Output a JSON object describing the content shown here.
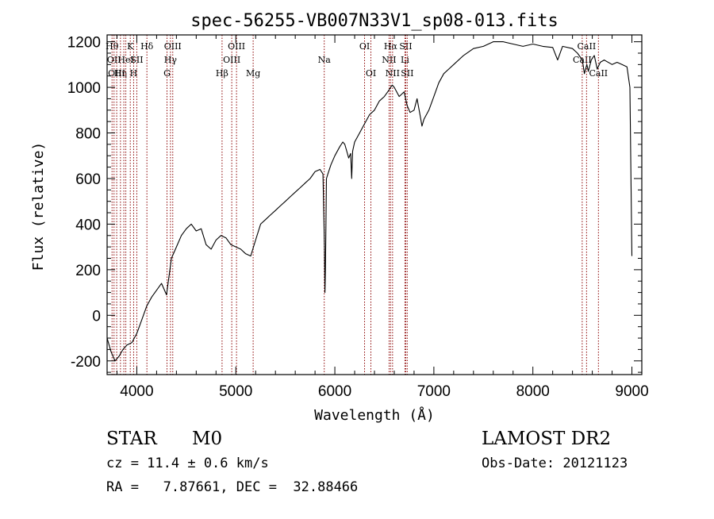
{
  "title": "spec-56255-VB007N33V1_sp08-013.fits",
  "chart_data": {
    "type": "line",
    "title": "spec-56255-VB007N33V1_sp08-013.fits",
    "xlabel": "Wavelength (Å)",
    "ylabel": "Flux (relative)",
    "xlim": [
      3700,
      9100
    ],
    "ylim": [
      -260,
      1230
    ],
    "xticks": [
      4000,
      5000,
      6000,
      7000,
      8000,
      9000
    ],
    "yticks": [
      -200,
      0,
      200,
      400,
      600,
      800,
      1000,
      1200
    ],
    "grid": false,
    "line_color": "#000000",
    "marker_color": "#8b0000",
    "series": [
      {
        "x": [
          3700,
          3740,
          3780,
          3820,
          3860,
          3900,
          3950,
          4000,
          4050,
          4100,
          4150,
          4200,
          4250,
          4300,
          4350,
          4400,
          4450,
          4500,
          4550,
          4600,
          4650,
          4700,
          4750,
          4800,
          4850,
          4900,
          4950,
          5000,
          5050,
          5100,
          5150,
          5200,
          5250,
          5300,
          5350,
          5400,
          5450,
          5500,
          5550,
          5600,
          5650,
          5700,
          5750,
          5800,
          5850,
          5880,
          5895,
          5900,
          5905,
          5915,
          5930,
          5960,
          6000,
          6050,
          6080,
          6100,
          6120,
          6140,
          6160,
          6170,
          6180,
          6200,
          6250,
          6300,
          6350,
          6400,
          6450,
          6500,
          6550,
          6563,
          6580,
          6600,
          6650,
          6700,
          6730,
          6760,
          6800,
          6830,
          6860,
          6880,
          6900,
          6950,
          7000,
          7050,
          7100,
          7150,
          7200,
          7300,
          7400,
          7500,
          7600,
          7700,
          7800,
          7900,
          8000,
          8100,
          8200,
          8250,
          8300,
          8400,
          8450,
          8500,
          8520,
          8545,
          8560,
          8590,
          8620,
          8650,
          8680,
          8720,
          8800,
          8850,
          8900,
          8950,
          8980,
          9000
        ],
        "y": [
          -100,
          -160,
          -200,
          -180,
          -150,
          -130,
          -120,
          -80,
          -20,
          40,
          80,
          110,
          140,
          90,
          250,
          300,
          350,
          380,
          400,
          370,
          380,
          310,
          290,
          330,
          350,
          340,
          310,
          300,
          290,
          270,
          260,
          330,
          400,
          420,
          440,
          460,
          480,
          500,
          520,
          540,
          560,
          580,
          600,
          630,
          640,
          620,
          300,
          100,
          200,
          600,
          620,
          660,
          700,
          740,
          760,
          750,
          720,
          690,
          710,
          600,
          720,
          760,
          800,
          840,
          880,
          900,
          940,
          960,
          990,
          1000,
          1010,
          1000,
          960,
          980,
          920,
          890,
          900,
          950,
          880,
          830,
          860,
          900,
          960,
          1020,
          1060,
          1080,
          1100,
          1140,
          1170,
          1180,
          1200,
          1200,
          1190,
          1180,
          1190,
          1180,
          1175,
          1120,
          1180,
          1170,
          1150,
          1120,
          1060,
          1100,
          1070,
          1120,
          1140,
          1080,
          1110,
          1120,
          1100,
          1110,
          1100,
          1090,
          1000,
          260
        ]
      }
    ],
    "lines": [
      {
        "x": 3750,
        "labels": [
          "Hθ"
        ],
        "rows": [
          1
        ]
      },
      {
        "x": 3770,
        "labels": [
          "OII"
        ],
        "rows": [
          2
        ]
      },
      {
        "x": 3797,
        "labels": [
          "OIII"
        ],
        "rows": [
          3
        ]
      },
      {
        "x": 3835,
        "labels": [
          "Hη"
        ],
        "rows": [
          3
        ]
      },
      {
        "x": 3869,
        "labels": [],
        "rows": []
      },
      {
        "x": 3889,
        "labels": [
          "HeI"
        ],
        "rows": [
          2
        ]
      },
      {
        "x": 3934,
        "labels": [
          "K"
        ],
        "rows": [
          1
        ]
      },
      {
        "x": 3968,
        "labels": [
          "H"
        ],
        "rows": [
          3
        ]
      },
      {
        "x": 4000,
        "labels": [
          "SII"
        ],
        "rows": [
          2
        ]
      },
      {
        "x": 4102,
        "labels": [
          "Hδ"
        ],
        "rows": [
          1
        ]
      },
      {
        "x": 4305,
        "labels": [
          "G"
        ],
        "rows": [
          3
        ]
      },
      {
        "x": 4340,
        "labels": [
          "Hγ"
        ],
        "rows": [
          2
        ]
      },
      {
        "x": 4363,
        "labels": [
          "OIII"
        ],
        "rows": [
          1
        ]
      },
      {
        "x": 4861,
        "labels": [
          "Hβ"
        ],
        "rows": [
          3
        ]
      },
      {
        "x": 4959,
        "labels": [
          "OIII"
        ],
        "rows": [
          2
        ]
      },
      {
        "x": 5007,
        "labels": [
          "OIII"
        ],
        "rows": [
          1
        ]
      },
      {
        "x": 5175,
        "labels": [
          "Mg"
        ],
        "rows": [
          3
        ]
      },
      {
        "x": 5893,
        "labels": [
          "Na"
        ],
        "rows": [
          2
        ]
      },
      {
        "x": 6300,
        "labels": [
          "OI"
        ],
        "rows": [
          1
        ]
      },
      {
        "x": 6364,
        "labels": [
          "OI"
        ],
        "rows": [
          3
        ]
      },
      {
        "x": 6548,
        "labels": [
          "NII"
        ],
        "rows": [
          2
        ]
      },
      {
        "x": 6563,
        "labels": [
          "Hα"
        ],
        "rows": [
          1
        ]
      },
      {
        "x": 6583,
        "labels": [
          "NII"
        ],
        "rows": [
          3
        ]
      },
      {
        "x": 6708,
        "labels": [
          "Li"
        ],
        "rows": [
          2
        ]
      },
      {
        "x": 6716,
        "labels": [
          "SII"
        ],
        "rows": [
          1
        ]
      },
      {
        "x": 6731,
        "labels": [
          "SII"
        ],
        "rows": [
          3
        ]
      },
      {
        "x": 8498,
        "labels": [
          "CaII"
        ],
        "rows": [
          2
        ]
      },
      {
        "x": 8542,
        "labels": [
          "CaII"
        ],
        "rows": [
          1
        ]
      },
      {
        "x": 8662,
        "labels": [
          "CaII"
        ],
        "rows": [
          3
        ]
      }
    ]
  },
  "info": {
    "class": "STAR",
    "subclass": "M0",
    "survey": "LAMOST DR2",
    "cz": "cz = 11.4 ± 0.6 km/s",
    "obs_date": "Obs-Date: 20121123",
    "radec": "RA =   7.87661, DEC =  32.88466"
  }
}
